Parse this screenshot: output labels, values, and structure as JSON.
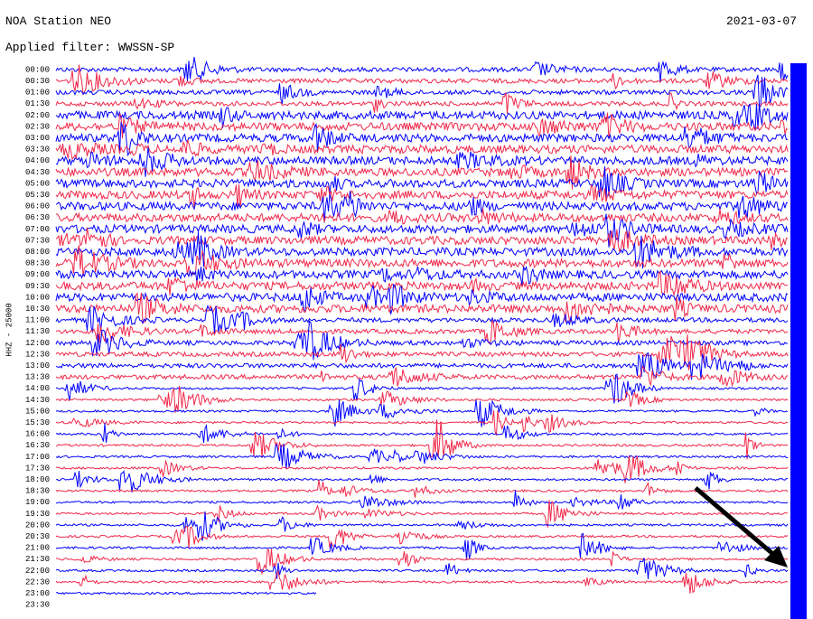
{
  "header": {
    "station": "NOA Station NEO",
    "date": "2021-03-07",
    "filter": "Applied filter: WWSSN-SP"
  },
  "axis_label": "HHZ - 25000",
  "time_labels": [
    "00:00",
    "00:30",
    "01:00",
    "01:30",
    "02:00",
    "02:30",
    "03:00",
    "03:30",
    "04:00",
    "04:30",
    "05:00",
    "05:30",
    "06:00",
    "06:30",
    "07:00",
    "07:30",
    "08:00",
    "08:30",
    "09:00",
    "09:30",
    "10:00",
    "10:30",
    "11:00",
    "11:30",
    "12:00",
    "12:30",
    "13:00",
    "13:30",
    "14:00",
    "14:30",
    "15:00",
    "15:30",
    "16:00",
    "16:30",
    "17:00",
    "17:30",
    "18:00",
    "18:30",
    "19:00",
    "19:30",
    "20:00",
    "20:30",
    "21:00",
    "21:30",
    "22:00",
    "22:30",
    "23:00",
    "23:30"
  ]
}
